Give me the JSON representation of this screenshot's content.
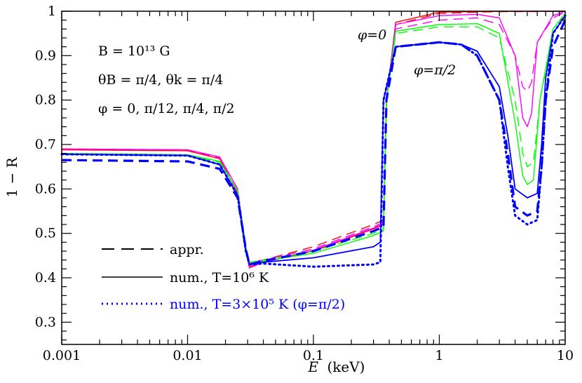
{
  "chart_data": {
    "type": "line",
    "xlabel_var": "E",
    "xlabel_unit": "(keV)",
    "ylabel": "1 − R",
    "x_scale": "log",
    "xlim": [
      0.001,
      10
    ],
    "ylim": [
      0.25,
      1.0
    ],
    "x_tick_labels": [
      "0.001",
      "0.01",
      "0.1",
      "1",
      "10"
    ],
    "y_tick_labels": [
      "0.3",
      "0.4",
      "0.5",
      "0.6",
      "0.7",
      "0.8",
      "0.9",
      "1"
    ],
    "annotations": {
      "line1": "B = 10¹³ G",
      "line2": "θB = π/4,  θk = π/4",
      "line3": "φ = 0,  π/12,  π/4,  π/2",
      "phi0_label": "φ=0",
      "phi_pi2_label": "φ=π/2"
    },
    "legend": [
      {
        "style": "dashed",
        "text": "appr.",
        "color": "#000000"
      },
      {
        "style": "solid",
        "text": "num., T=10⁶ K",
        "color": "#000000"
      },
      {
        "style": "dotted",
        "text": "num., T=3×10⁵ K (φ=π/2)",
        "color": "#0000ff"
      }
    ],
    "series": [
      {
        "name": "φ=0",
        "color": "#ff0000",
        "style": "dashed",
        "x": [
          0.001,
          0.01,
          0.018,
          0.025,
          0.029,
          0.031,
          0.04,
          0.1,
          0.3,
          0.36,
          0.38,
          0.45,
          1,
          2,
          3,
          5,
          10
        ],
        "y": [
          0.69,
          0.687,
          0.67,
          0.6,
          0.47,
          0.435,
          0.44,
          0.47,
          0.52,
          0.53,
          0.8,
          0.97,
          0.995,
          0.998,
          0.999,
          0.999,
          1.0
        ]
      },
      {
        "name": "φ=0",
        "color": "#ff0000",
        "style": "solid",
        "x": [
          0.001,
          0.01,
          0.018,
          0.025,
          0.029,
          0.031,
          0.04,
          0.1,
          0.3,
          0.36,
          0.38,
          0.45,
          1,
          2,
          3,
          5,
          10
        ],
        "y": [
          0.688,
          0.686,
          0.668,
          0.59,
          0.46,
          0.425,
          0.435,
          0.46,
          0.51,
          0.52,
          0.8,
          0.975,
          0.998,
          0.999,
          1.0,
          1.0,
          1.0
        ]
      },
      {
        "name": "φ=π/12",
        "color": "#ff00ff",
        "style": "dashed",
        "x": [
          0.001,
          0.01,
          0.018,
          0.025,
          0.029,
          0.031,
          0.04,
          0.1,
          0.3,
          0.36,
          0.38,
          0.45,
          1,
          2,
          3,
          4,
          4.6,
          5,
          5.4,
          6,
          8,
          10
        ],
        "y": [
          0.69,
          0.688,
          0.67,
          0.6,
          0.47,
          0.432,
          0.44,
          0.465,
          0.515,
          0.525,
          0.8,
          0.96,
          0.98,
          0.985,
          0.97,
          0.9,
          0.83,
          0.82,
          0.84,
          0.93,
          0.985,
          0.998
        ]
      },
      {
        "name": "φ=π/12",
        "color": "#ff00ff",
        "style": "solid",
        "x": [
          0.001,
          0.01,
          0.018,
          0.025,
          0.029,
          0.031,
          0.04,
          0.1,
          0.3,
          0.36,
          0.38,
          0.45,
          1,
          2,
          3,
          4,
          4.6,
          5,
          5.4,
          6,
          8,
          10
        ],
        "y": [
          0.69,
          0.688,
          0.672,
          0.6,
          0.46,
          0.422,
          0.435,
          0.462,
          0.512,
          0.522,
          0.8,
          0.97,
          0.99,
          0.993,
          0.985,
          0.9,
          0.76,
          0.74,
          0.77,
          0.93,
          0.99,
          1.0
        ]
      },
      {
        "name": "φ=π/4",
        "color": "#00ff00",
        "style": "dashed",
        "x": [
          0.001,
          0.01,
          0.018,
          0.025,
          0.029,
          0.031,
          0.04,
          0.1,
          0.3,
          0.36,
          0.38,
          0.45,
          1,
          2,
          3,
          4,
          4.6,
          5,
          5.6,
          6.3,
          8,
          10
        ],
        "y": [
          0.678,
          0.675,
          0.66,
          0.595,
          0.47,
          0.435,
          0.44,
          0.46,
          0.5,
          0.51,
          0.8,
          0.95,
          0.965,
          0.965,
          0.94,
          0.8,
          0.68,
          0.65,
          0.66,
          0.8,
          0.95,
          0.99
        ]
      },
      {
        "name": "φ=π/4",
        "color": "#00ff00",
        "style": "solid",
        "x": [
          0.001,
          0.01,
          0.018,
          0.025,
          0.029,
          0.031,
          0.04,
          0.1,
          0.3,
          0.36,
          0.38,
          0.45,
          1,
          2,
          3,
          4,
          4.6,
          5,
          5.6,
          6.3,
          8,
          10
        ],
        "y": [
          0.68,
          0.677,
          0.662,
          0.595,
          0.465,
          0.43,
          0.438,
          0.455,
          0.495,
          0.505,
          0.8,
          0.955,
          0.97,
          0.972,
          0.95,
          0.75,
          0.63,
          0.61,
          0.62,
          0.8,
          0.96,
          0.995
        ]
      },
      {
        "name": "φ=π/2",
        "color": "#0000ff",
        "style": "dashed",
        "x": [
          0.001,
          0.01,
          0.018,
          0.025,
          0.029,
          0.031,
          0.04,
          0.1,
          0.3,
          0.36,
          0.38,
          0.45,
          1,
          1.5,
          2,
          3,
          3.5,
          4,
          5,
          6,
          6.5,
          7,
          8,
          10
        ],
        "y": [
          0.665,
          0.662,
          0.645,
          0.58,
          0.465,
          0.43,
          0.438,
          0.46,
          0.505,
          0.515,
          0.8,
          0.92,
          0.93,
          0.925,
          0.9,
          0.8,
          0.68,
          0.56,
          0.54,
          0.55,
          0.65,
          0.8,
          0.92,
          0.98
        ]
      },
      {
        "name": "φ=π/2",
        "color": "#0000ff",
        "style": "solid",
        "x": [
          0.001,
          0.01,
          0.018,
          0.025,
          0.029,
          0.031,
          0.04,
          0.1,
          0.3,
          0.34,
          0.36,
          0.45,
          1,
          1.5,
          2,
          3,
          3.5,
          4,
          5,
          6,
          6.5,
          7,
          8,
          10
        ],
        "y": [
          0.678,
          0.675,
          0.655,
          0.585,
          0.46,
          0.43,
          0.435,
          0.445,
          0.47,
          0.48,
          0.8,
          0.92,
          0.93,
          0.925,
          0.91,
          0.83,
          0.72,
          0.6,
          0.58,
          0.59,
          0.7,
          0.85,
          0.95,
          0.99
        ]
      },
      {
        "name": "φ=π/2",
        "color": "#0000ff",
        "style": "dotted",
        "x": [
          0.001,
          0.01,
          0.018,
          0.025,
          0.029,
          0.031,
          0.04,
          0.1,
          0.3,
          0.34,
          0.36,
          0.45,
          1,
          1.5,
          2,
          3,
          3.5,
          4,
          5,
          6,
          6.5,
          7,
          8,
          10
        ],
        "y": [
          0.678,
          0.675,
          0.655,
          0.585,
          0.46,
          0.43,
          0.432,
          0.425,
          0.43,
          0.435,
          0.8,
          0.92,
          0.93,
          0.925,
          0.9,
          0.8,
          0.65,
          0.54,
          0.52,
          0.53,
          0.65,
          0.8,
          0.95,
          0.99
        ]
      }
    ]
  }
}
